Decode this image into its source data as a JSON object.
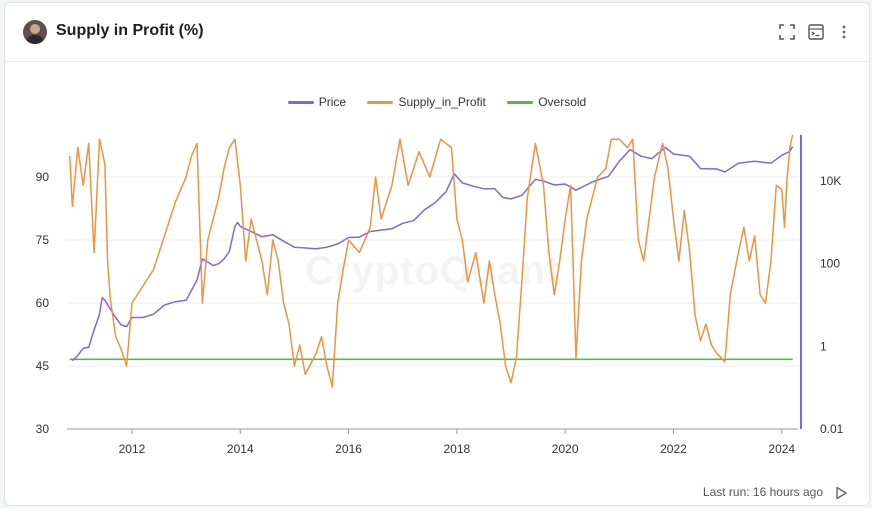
{
  "header": {
    "title": "Supply in Profit (%)",
    "icons": [
      "fullscreen-icon",
      "terminal-icon",
      "more-vertical-icon"
    ]
  },
  "watermark": "CryptoQuant",
  "footer": {
    "last_run": "Last run: 16 hours ago"
  },
  "colors": {
    "price": "#7b68e6",
    "supply": "#f0923e",
    "oversold": "#57b84a"
  },
  "chart_data": {
    "type": "line",
    "series": [
      {
        "name": "Price",
        "axis": "right",
        "points": [
          [
            2010.9,
            0.45
          ],
          [
            2011.0,
            0.6
          ],
          [
            2011.1,
            0.9
          ],
          [
            2011.2,
            0.95
          ],
          [
            2011.3,
            2.5
          ],
          [
            2011.4,
            6
          ],
          [
            2011.45,
            15
          ],
          [
            2011.5,
            13
          ],
          [
            2011.6,
            8
          ],
          [
            2011.7,
            5
          ],
          [
            2011.8,
            3.3
          ],
          [
            2011.9,
            3
          ],
          [
            2012.0,
            5
          ],
          [
            2012.2,
            5
          ],
          [
            2012.4,
            6
          ],
          [
            2012.6,
            10
          ],
          [
            2012.8,
            12
          ],
          [
            2013.0,
            13
          ],
          [
            2013.2,
            40
          ],
          [
            2013.3,
            130
          ],
          [
            2013.4,
            110
          ],
          [
            2013.5,
            90
          ],
          [
            2013.6,
            100
          ],
          [
            2013.7,
            130
          ],
          [
            2013.8,
            200
          ],
          [
            2013.9,
            800
          ],
          [
            2013.95,
            1000
          ],
          [
            2014.0,
            800
          ],
          [
            2014.2,
            600
          ],
          [
            2014.4,
            450
          ],
          [
            2014.6,
            500
          ],
          [
            2014.8,
            350
          ],
          [
            2015.0,
            250
          ],
          [
            2015.2,
            240
          ],
          [
            2015.4,
            230
          ],
          [
            2015.6,
            250
          ],
          [
            2015.8,
            300
          ],
          [
            2016.0,
            430
          ],
          [
            2016.2,
            440
          ],
          [
            2016.4,
            600
          ],
          [
            2016.6,
            650
          ],
          [
            2016.8,
            700
          ],
          [
            2017.0,
            950
          ],
          [
            2017.2,
            1100
          ],
          [
            2017.4,
            2000
          ],
          [
            2017.6,
            3000
          ],
          [
            2017.8,
            5500
          ],
          [
            2017.95,
            15000
          ],
          [
            2018.1,
            9000
          ],
          [
            2018.3,
            7500
          ],
          [
            2018.5,
            6500
          ],
          [
            2018.7,
            6500
          ],
          [
            2018.85,
            4000
          ],
          [
            2019.0,
            3700
          ],
          [
            2019.2,
            4500
          ],
          [
            2019.45,
            11000
          ],
          [
            2019.6,
            10000
          ],
          [
            2019.8,
            8000
          ],
          [
            2020.0,
            8500
          ],
          [
            2020.2,
            6000
          ],
          [
            2020.5,
            9500
          ],
          [
            2020.8,
            13000
          ],
          [
            2021.0,
            30000
          ],
          [
            2021.2,
            58000
          ],
          [
            2021.4,
            40000
          ],
          [
            2021.6,
            35000
          ],
          [
            2021.85,
            65000
          ],
          [
            2022.0,
            45000
          ],
          [
            2022.3,
            40000
          ],
          [
            2022.5,
            20000
          ],
          [
            2022.8,
            19500
          ],
          [
            2022.95,
            16500
          ],
          [
            2023.2,
            27000
          ],
          [
            2023.5,
            30000
          ],
          [
            2023.8,
            27000
          ],
          [
            2024.0,
            42000
          ],
          [
            2024.15,
            52000
          ],
          [
            2024.2,
            68000
          ]
        ]
      },
      {
        "name": "Supply_in_Profit",
        "axis": "left",
        "points": [
          [
            2010.85,
            95
          ],
          [
            2010.9,
            83
          ],
          [
            2011.0,
            97
          ],
          [
            2011.1,
            88
          ],
          [
            2011.2,
            98
          ],
          [
            2011.3,
            72
          ],
          [
            2011.4,
            99
          ],
          [
            2011.5,
            93
          ],
          [
            2011.55,
            70
          ],
          [
            2011.6,
            61
          ],
          [
            2011.7,
            52
          ],
          [
            2011.8,
            49
          ],
          [
            2011.9,
            45
          ],
          [
            2012.0,
            60
          ],
          [
            2012.1,
            62
          ],
          [
            2012.2,
            64
          ],
          [
            2012.4,
            68
          ],
          [
            2012.6,
            76
          ],
          [
            2012.8,
            84
          ],
          [
            2013.0,
            90
          ],
          [
            2013.1,
            95
          ],
          [
            2013.2,
            98
          ],
          [
            2013.3,
            60
          ],
          [
            2013.4,
            75
          ],
          [
            2013.5,
            80
          ],
          [
            2013.6,
            85
          ],
          [
            2013.7,
            92
          ],
          [
            2013.8,
            97
          ],
          [
            2013.9,
            99
          ],
          [
            2014.0,
            88
          ],
          [
            2014.1,
            70
          ],
          [
            2014.2,
            80
          ],
          [
            2014.3,
            75
          ],
          [
            2014.4,
            70
          ],
          [
            2014.5,
            62
          ],
          [
            2014.6,
            75
          ],
          [
            2014.7,
            70
          ],
          [
            2014.8,
            60
          ],
          [
            2014.9,
            55
          ],
          [
            2015.0,
            45
          ],
          [
            2015.1,
            50
          ],
          [
            2015.2,
            43
          ],
          [
            2015.4,
            48
          ],
          [
            2015.5,
            52
          ],
          [
            2015.6,
            45
          ],
          [
            2015.7,
            40
          ],
          [
            2015.8,
            60
          ],
          [
            2015.9,
            68
          ],
          [
            2016.0,
            75
          ],
          [
            2016.2,
            72
          ],
          [
            2016.4,
            78
          ],
          [
            2016.5,
            90
          ],
          [
            2016.6,
            80
          ],
          [
            2016.8,
            88
          ],
          [
            2016.95,
            99
          ],
          [
            2017.1,
            88
          ],
          [
            2017.3,
            96
          ],
          [
            2017.5,
            90
          ],
          [
            2017.7,
            99
          ],
          [
            2017.9,
            97
          ],
          [
            2018.0,
            80
          ],
          [
            2018.1,
            75
          ],
          [
            2018.2,
            65
          ],
          [
            2018.35,
            72
          ],
          [
            2018.5,
            60
          ],
          [
            2018.6,
            70
          ],
          [
            2018.7,
            62
          ],
          [
            2018.8,
            55
          ],
          [
            2018.9,
            45
          ],
          [
            2019.0,
            41
          ],
          [
            2019.1,
            47
          ],
          [
            2019.2,
            65
          ],
          [
            2019.3,
            85
          ],
          [
            2019.45,
            98
          ],
          [
            2019.6,
            88
          ],
          [
            2019.7,
            72
          ],
          [
            2019.8,
            62
          ],
          [
            2019.9,
            70
          ],
          [
            2020.0,
            80
          ],
          [
            2020.1,
            88
          ],
          [
            2020.2,
            47
          ],
          [
            2020.3,
            70
          ],
          [
            2020.4,
            80
          ],
          [
            2020.5,
            85
          ],
          [
            2020.6,
            90
          ],
          [
            2020.75,
            92
          ],
          [
            2020.85,
            99
          ],
          [
            2021.0,
            99
          ],
          [
            2021.15,
            97
          ],
          [
            2021.25,
            99
          ],
          [
            2021.35,
            75
          ],
          [
            2021.45,
            70
          ],
          [
            2021.55,
            80
          ],
          [
            2021.65,
            90
          ],
          [
            2021.8,
            98
          ],
          [
            2021.9,
            92
          ],
          [
            2022.0,
            80
          ],
          [
            2022.1,
            70
          ],
          [
            2022.2,
            82
          ],
          [
            2022.3,
            72
          ],
          [
            2022.4,
            57
          ],
          [
            2022.5,
            51
          ],
          [
            2022.6,
            55
          ],
          [
            2022.7,
            50
          ],
          [
            2022.8,
            48
          ],
          [
            2022.95,
            46
          ],
          [
            2023.05,
            62
          ],
          [
            2023.2,
            72
          ],
          [
            2023.3,
            78
          ],
          [
            2023.4,
            70
          ],
          [
            2023.5,
            76
          ],
          [
            2023.6,
            62
          ],
          [
            2023.7,
            60
          ],
          [
            2023.8,
            70
          ],
          [
            2023.9,
            88
          ],
          [
            2024.0,
            87
          ],
          [
            2024.05,
            78
          ],
          [
            2024.1,
            90
          ],
          [
            2024.15,
            97
          ],
          [
            2024.2,
            100
          ]
        ]
      },
      {
        "name": "Oversold",
        "axis": "left",
        "points": [
          [
            2010.85,
            46.6
          ],
          [
            2024.2,
            46.6
          ]
        ]
      }
    ],
    "x_ticks": [
      "2012",
      "2014",
      "2016",
      "2018",
      "2020",
      "2022",
      "2024"
    ],
    "x_tick_values": [
      2012,
      2014,
      2016,
      2018,
      2020,
      2022,
      2024
    ],
    "xlim": [
      2010.8,
      2024.3
    ],
    "y_left": {
      "ticks": [
        "30",
        "45",
        "60",
        "75",
        "90"
      ],
      "tick_values": [
        30,
        45,
        60,
        75,
        90
      ],
      "ylim": [
        30,
        100
      ]
    },
    "y_right": {
      "ticks": [
        "0.01",
        "1",
        "100",
        "10K"
      ],
      "tick_values": [
        0.01,
        1,
        100,
        10000
      ],
      "scale": "log",
      "ylim": [
        0.01,
        130000
      ]
    },
    "legend": [
      {
        "label": "Price",
        "color": "#7b68e6"
      },
      {
        "label": "Supply_in_Profit",
        "color": "#f0923e"
      },
      {
        "label": "Oversold",
        "color": "#57b84a"
      }
    ],
    "legend_position": "top-center",
    "grid": true
  }
}
